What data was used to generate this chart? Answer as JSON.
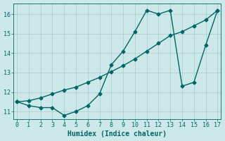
{
  "title": "",
  "xlabel": "Humidex (Indice chaleur)",
  "ylabel": "",
  "bg_color": "#cce8e8",
  "line_color": "#006666",
  "grid_color": "#b0d0d0",
  "series1_x": [
    0,
    1,
    2,
    3,
    4,
    5,
    6,
    7,
    8,
    9,
    10,
    11,
    12,
    13,
    14,
    15,
    16,
    17
  ],
  "series1_y": [
    11.5,
    11.3,
    11.2,
    11.2,
    10.8,
    11.0,
    11.3,
    11.9,
    13.4,
    14.1,
    15.1,
    16.2,
    16.0,
    16.2,
    12.3,
    12.5,
    14.4,
    16.2
  ],
  "series2_x": [
    0,
    1,
    2,
    3,
    4,
    5,
    6,
    7,
    8,
    9,
    10,
    11,
    12,
    13,
    14,
    15,
    16,
    17
  ],
  "series2_y": [
    11.5,
    11.55,
    11.7,
    11.9,
    12.1,
    12.25,
    12.5,
    12.75,
    13.05,
    13.35,
    13.7,
    14.1,
    14.5,
    14.9,
    15.1,
    15.4,
    15.7,
    16.2
  ],
  "xlim": [
    -0.3,
    17.3
  ],
  "ylim": [
    10.6,
    16.55
  ],
  "yticks": [
    11,
    12,
    13,
    14,
    15,
    16
  ],
  "xticks": [
    0,
    1,
    2,
    3,
    4,
    5,
    6,
    7,
    8,
    9,
    10,
    11,
    12,
    13,
    14,
    15,
    16,
    17
  ],
  "marker": "D",
  "markersize": 2.5,
  "linewidth": 1.0,
  "tick_labelsize": 6,
  "xlabel_fontsize": 7
}
